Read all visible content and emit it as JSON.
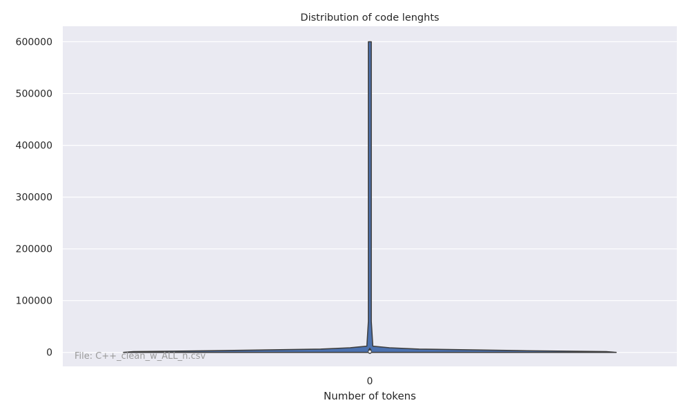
{
  "chart_data": {
    "type": "violin",
    "title": "Distribution of code lenghts",
    "xlabel": "Number of tokens",
    "ylabel": "",
    "categories": [
      "0"
    ],
    "ylim": [
      -27000,
      630000
    ],
    "yticks": [
      0,
      100000,
      200000,
      300000,
      400000,
      500000,
      600000
    ],
    "ytick_labels": [
      "0",
      "100000",
      "200000",
      "300000",
      "400000",
      "500000",
      "600000"
    ],
    "grid": true,
    "violin": {
      "category": "0",
      "min": 0,
      "max": 600000,
      "median": 1500,
      "q1": 400,
      "q3": 4000,
      "whisker_low": 0,
      "whisker_high": 9000,
      "density_shape": [
        {
          "y": 0,
          "w": 1.0
        },
        {
          "y": 1500,
          "w": 0.96
        },
        {
          "y": 3500,
          "w": 0.6
        },
        {
          "y": 6500,
          "w": 0.2
        },
        {
          "y": 9000,
          "w": 0.08
        },
        {
          "y": 12000,
          "w": 0.012
        },
        {
          "y": 60000,
          "w": 0.006
        },
        {
          "y": 600000,
          "w": 0.006
        }
      ]
    },
    "colors": {
      "background": "#eaeaf2",
      "grid": "#ffffff",
      "body": "#4c72b0",
      "outline": "#3f3f3f",
      "median": "#ffffff"
    },
    "annotation": "File: C++_clean_w_ALL_n.csv"
  }
}
